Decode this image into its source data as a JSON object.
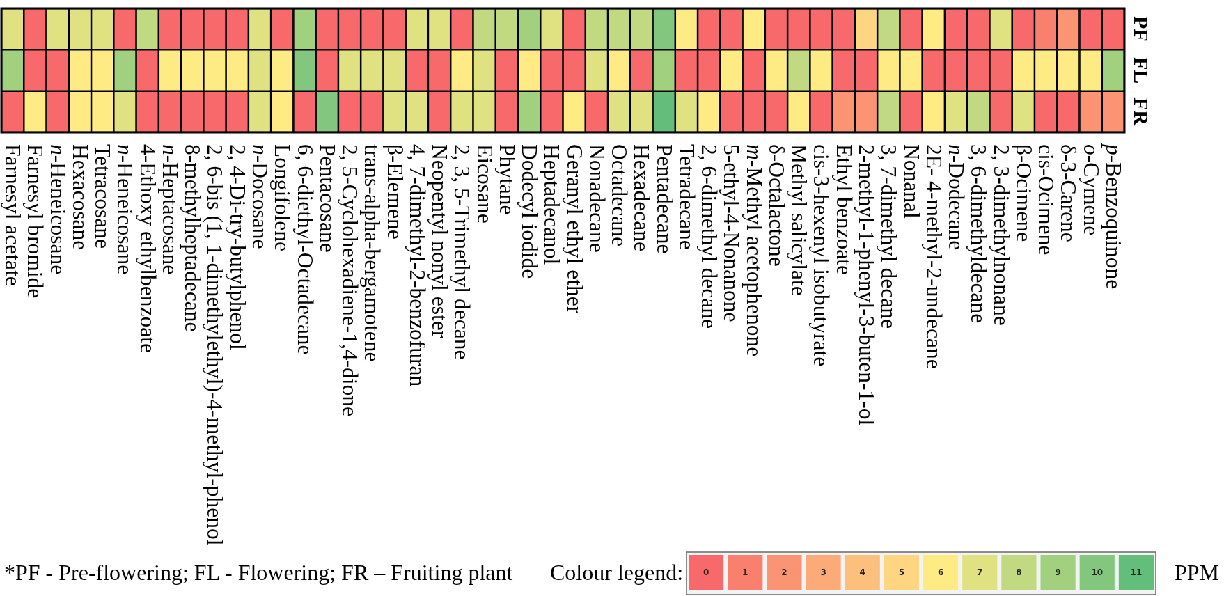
{
  "chart_data": {
    "type": "heatmap",
    "categories": [
      "Farnesyl acetate",
      "Farnesyl bromide",
      "n-Heneicosane",
      "Hexacosane",
      "Tetracosane",
      "n-Heneicosane",
      "4-Ethoxy ethylbenzoate",
      "n-Heptacosane",
      "8-methylheptadecane",
      "2, 6-bis (1, 1-dimethylethyl)-4-methyl-phenol",
      "2, 4-Di-try-butylphenol",
      "n-Docosane",
      "Longifolene",
      "6, 6-diethyl-Octadecane",
      "Pentacosane",
      "2, 5-Cyclohexadiene-1,4-dione",
      "trans-alpha-bergamotene",
      "β-Elemene",
      "4, 7-dimethyl-2-benzofuran",
      "Neopentyl nonyl ester",
      "2, 3, 5-Trimethyl decane",
      "Eicosane",
      "Phytane",
      "Dodecyl iodide",
      "Heptadecanol",
      "Geranyl ethyl ether",
      "Nonadecane",
      "Octadecane",
      "Hexadecane",
      "Pentadecane",
      "Tetradecane",
      "2, 6-dimethyl decane",
      "5-ethyl-4-Nonanone",
      "m-Methyl acetophenone",
      "δ-Octalactone",
      "Methyl salicylate",
      "cis-3-hexenyl isobutyrate",
      "Ethyl benzoate",
      "2-methyl-1-phenyl-3-buten-1-ol",
      "3, 7-dimethyl decane",
      "Nonanal",
      "2E- 4-methyl-2-undecane",
      "n-Dodecane",
      "3, 6-dimethyldecane",
      "2, 3-dimethylnonane",
      "β-Ocimene",
      "cis-Ocimene",
      "δ-3-Carene",
      "o-Cymene",
      "p-Benzoquinone"
    ],
    "y_categories": [
      "PF",
      "FL",
      "FR"
    ],
    "cells": [
      [
        7,
        0,
        7,
        7,
        7,
        0,
        8,
        0,
        0,
        0,
        0,
        7,
        0,
        9,
        0,
        0,
        0,
        0,
        7,
        7,
        0,
        8,
        8,
        9,
        7,
        0,
        8,
        8,
        8,
        10,
        6,
        0,
        0,
        6,
        0,
        0,
        0,
        0,
        5,
        8,
        0,
        6,
        0,
        0,
        7,
        0,
        1,
        2,
        0,
        0
      ],
      [
        9,
        0,
        0,
        6,
        6,
        9,
        0,
        6,
        6,
        6,
        6,
        7,
        6,
        10,
        0,
        7,
        7,
        7,
        0,
        0,
        6,
        7,
        0,
        6,
        0,
        0,
        7,
        6,
        0,
        9,
        0,
        0,
        6,
        0,
        6,
        8,
        6,
        0,
        0,
        6,
        6,
        0,
        0,
        0,
        0,
        6,
        6,
        6,
        6,
        9
      ],
      [
        0,
        6,
        0,
        6,
        6,
        7,
        0,
        0,
        0,
        0,
        0,
        7,
        6,
        0,
        10,
        0,
        0,
        7,
        7,
        0,
        7,
        7,
        0,
        9,
        0,
        6,
        0,
        7,
        7,
        11,
        7,
        6,
        0,
        0,
        0,
        6,
        0,
        2,
        2,
        8,
        0,
        6,
        7,
        8,
        0,
        7,
        0,
        0,
        2,
        2
      ]
    ],
    "clim": [
      0,
      11
    ],
    "cticks": [
      0,
      1,
      2,
      3,
      4,
      5,
      6,
      7,
      8,
      9,
      10,
      11
    ],
    "legend_title": "Colour legend:",
    "clabel": "PPM",
    "annotations": [
      "*PF - Pre-flowering; FL - Flowering; FR – Fruiting plant"
    ]
  }
}
